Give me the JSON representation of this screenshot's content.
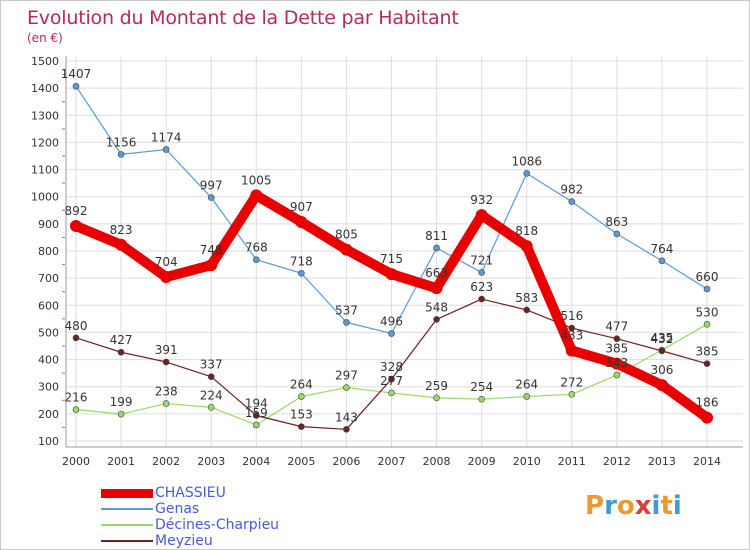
{
  "title": "Evolution du Montant de la Dette par Habitant",
  "subtitle": "(en €)",
  "logo": {
    "text": "Proxiti",
    "letters": [
      {
        "ch": "P",
        "color": "#e89a2e"
      },
      {
        "ch": "r",
        "color": "#3f9ad6"
      },
      {
        "ch": "o",
        "color": "#e89a2e"
      },
      {
        "ch": "x",
        "color": "#d8403a"
      },
      {
        "ch": "i",
        "color": "#3f9ad6"
      },
      {
        "ch": "t",
        "color": "#e89a2e"
      },
      {
        "ch": "i",
        "color": "#3f9ad6"
      }
    ]
  },
  "chart_data": {
    "type": "line",
    "title": "Evolution du Montant de la Dette par Habitant",
    "subtitle": "(en €)",
    "x": [
      "2000",
      "2001",
      "2002",
      "2003",
      "2004",
      "2005",
      "2006",
      "2007",
      "2008",
      "2009",
      "2010",
      "2011",
      "2012",
      "2013",
      "2014"
    ],
    "ylim": [
      100,
      1500
    ],
    "yticks": [
      100,
      200,
      300,
      400,
      500,
      600,
      700,
      800,
      900,
      1000,
      1100,
      1200,
      1300,
      1400,
      1500
    ],
    "grid": true,
    "legend_position": "bottom-left",
    "series": [
      {
        "name": "CHASSIEU",
        "color": "#e80000",
        "bold": true,
        "values": [
          892,
          823,
          704,
          748,
          1005,
          907,
          805,
          715,
          663,
          932,
          818,
          433,
          385,
          306,
          186
        ],
        "labels": [
          "892",
          "823",
          "704",
          "748",
          "1005",
          "907",
          "805",
          "715",
          "663",
          "932",
          "818",
          "433",
          "385",
          "306",
          "186"
        ]
      },
      {
        "name": "Genas",
        "color": "#5b9ad6",
        "bold": false,
        "values": [
          1407,
          1156,
          1174,
          997,
          768,
          718,
          537,
          496,
          811,
          721,
          1086,
          982,
          863,
          764,
          660
        ],
        "labels": [
          "1407",
          "1156",
          "1174",
          "997",
          "768",
          "718",
          "537",
          "496",
          "811",
          "721",
          "1086",
          "982",
          "863",
          "764",
          "660"
        ]
      },
      {
        "name": "Décines-Charpieu",
        "color": "#99d96a",
        "bold": false,
        "values": [
          216,
          199,
          238,
          224,
          159,
          264,
          297,
          277,
          259,
          254,
          264,
          272,
          343,
          435,
          530
        ],
        "labels": [
          "216",
          "199",
          "238",
          "224",
          "159",
          "264",
          "297",
          "277",
          "259",
          "254",
          "264",
          "272",
          "343",
          "435",
          "530"
        ]
      },
      {
        "name": "Meyzieu",
        "color": "#6b2325",
        "bold": false,
        "values": [
          480,
          427,
          391,
          337,
          194,
          153,
          143,
          328,
          548,
          623,
          583,
          516,
          477,
          432,
          385
        ],
        "labels": [
          "480",
          "427",
          "391",
          "337",
          "194",
          "153",
          "143",
          "328",
          "548",
          "623",
          "583",
          "516",
          "477",
          "432",
          "385"
        ]
      }
    ]
  }
}
